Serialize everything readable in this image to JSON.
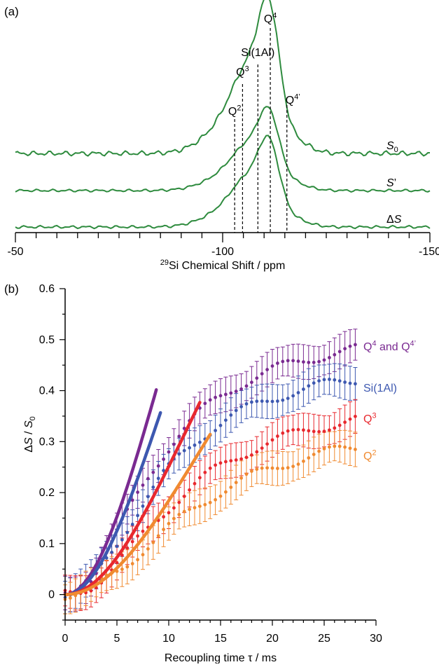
{
  "chart_data": [
    {
      "panel": "(a)",
      "type": "line",
      "xlabel": "²⁹Si Chemical Shift / ppm",
      "xlim": [
        -50,
        -150
      ],
      "x_ticks": [
        "-50",
        "-100",
        "-150"
      ],
      "grid": false,
      "series": [
        {
          "name": "S0",
          "label_main": "S",
          "label_sub": "0",
          "color": "#2e8b3e"
        },
        {
          "name": "S'",
          "label_main": "S",
          "label_sub": "’",
          "color": "#2e8b3e"
        },
        {
          "name": "ΔS",
          "label_main": "Δ",
          "label_sub": "S",
          "color": "#2e8b3e"
        }
      ],
      "peaks": [
        {
          "name": "Q2",
          "base": "Q",
          "sup": "2",
          "x": -102.9
        },
        {
          "name": "Q3",
          "base": "Q",
          "sup": "3",
          "x": -104.8
        },
        {
          "name": "Si(1Al)",
          "base": "Si(1Al)",
          "sup": "",
          "x": -108.5
        },
        {
          "name": "Q4",
          "base": "Q",
          "sup": "4",
          "x": -111.5
        },
        {
          "name": "Q4'",
          "base": "Q",
          "sup": "4’",
          "x": -115.5
        }
      ]
    },
    {
      "panel": "(b)",
      "type": "scatter",
      "xlabel": "Recoupling time τ / ms",
      "ylabel": "ΔS / S0",
      "xlim": [
        0,
        30
      ],
      "ylim": [
        -0.05,
        0.6
      ],
      "x_ticks": [
        "0",
        "5",
        "10",
        "15",
        "20",
        "25",
        "30"
      ],
      "y_ticks": [
        "0",
        "0.1",
        "0.2",
        "0.3",
        "0.4",
        "0.5",
        "0.6"
      ],
      "grid": false,
      "series": [
        {
          "name": "Q4 and Q4'",
          "base": "Q",
          "sup": "4",
          "rest": " and Q",
          "sup2": "4’",
          "color": "#7a2a91",
          "plateau": 0.53,
          "tau": 9.0,
          "fit_end": 8.8
        },
        {
          "name": "Si(1Al)",
          "base": "Si(1Al)",
          "sup": "",
          "color": "#3d58b0",
          "plateau": 0.47,
          "tau": 9.4,
          "fit_end": 9.3
        },
        {
          "name": "Q3",
          "base": "Q",
          "sup": "3",
          "color": "#e8282e",
          "plateau": 0.4,
          "tau": 11.5,
          "fit_end": 13.0
        },
        {
          "name": "Q2",
          "base": "Q",
          "sup": "2",
          "color": "#f08a30",
          "plateau": 0.35,
          "tau": 12.8,
          "fit_end": 14.0
        }
      ]
    }
  ]
}
